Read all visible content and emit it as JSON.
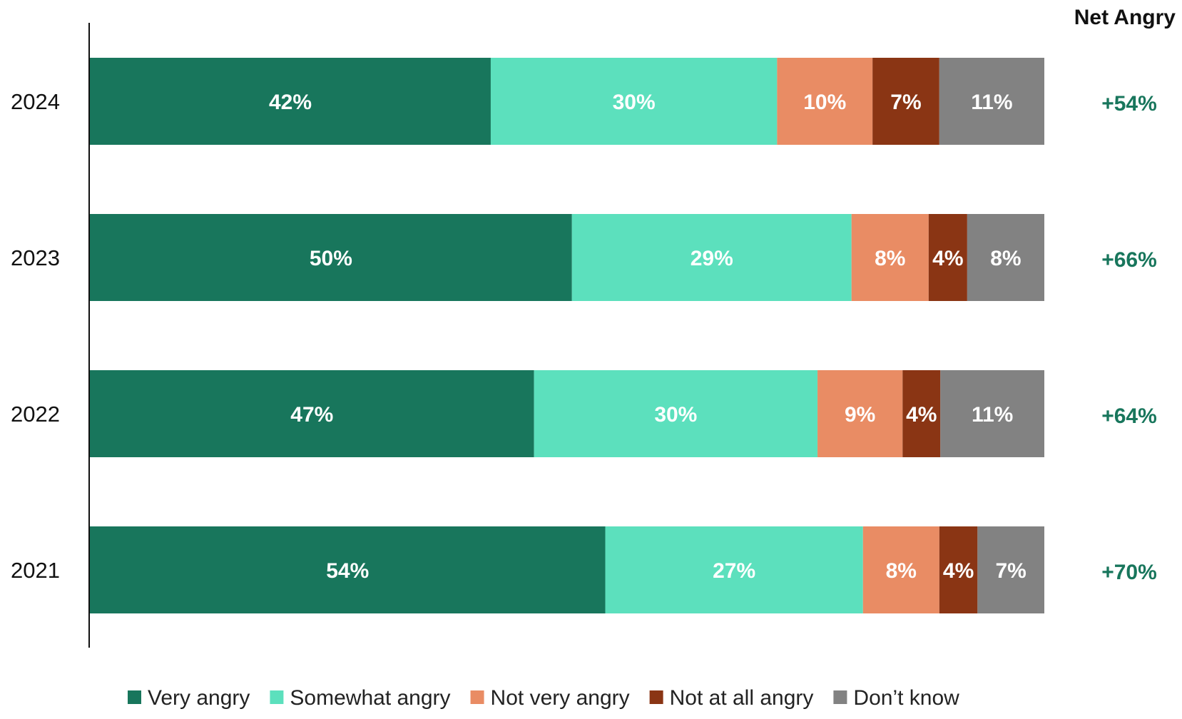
{
  "chart_data": {
    "type": "bar",
    "orientation": "horizontal",
    "stacked": true,
    "categories": [
      "2024",
      "2023",
      "2022",
      "2021"
    ],
    "series": [
      {
        "name": "Very angry",
        "color": "#18765c",
        "values": [
          42,
          50,
          47,
          54
        ],
        "labels": [
          "42%",
          "50%",
          "47%",
          "54%"
        ]
      },
      {
        "name": "Somewhat angry",
        "color": "#5ce0bd",
        "values": [
          30,
          29,
          30,
          27
        ],
        "labels": [
          "30%",
          "29%",
          "30%",
          "27%"
        ]
      },
      {
        "name": "Not very angry",
        "color": "#e98c64",
        "values": [
          10,
          8,
          9,
          8
        ],
        "labels": [
          "10%",
          "8%",
          "9%",
          "8%"
        ]
      },
      {
        "name": "Not at all angry",
        "color": "#8a3514",
        "values": [
          7,
          4,
          4,
          4
        ],
        "labels": [
          "7%",
          "4%",
          "4%",
          "4%"
        ]
      },
      {
        "name": "Don’t know",
        "color": "#828282",
        "values": [
          11,
          8,
          11,
          7
        ],
        "labels": [
          "11%",
          "8%",
          "11%",
          "7%"
        ]
      }
    ],
    "net": {
      "header": "Net Angry",
      "values": [
        "+54%",
        "+66%",
        "+64%",
        "+70%"
      ],
      "color": "#18765c"
    },
    "xlim": [
      0,
      100
    ],
    "legend_position": "bottom",
    "grid": false
  }
}
